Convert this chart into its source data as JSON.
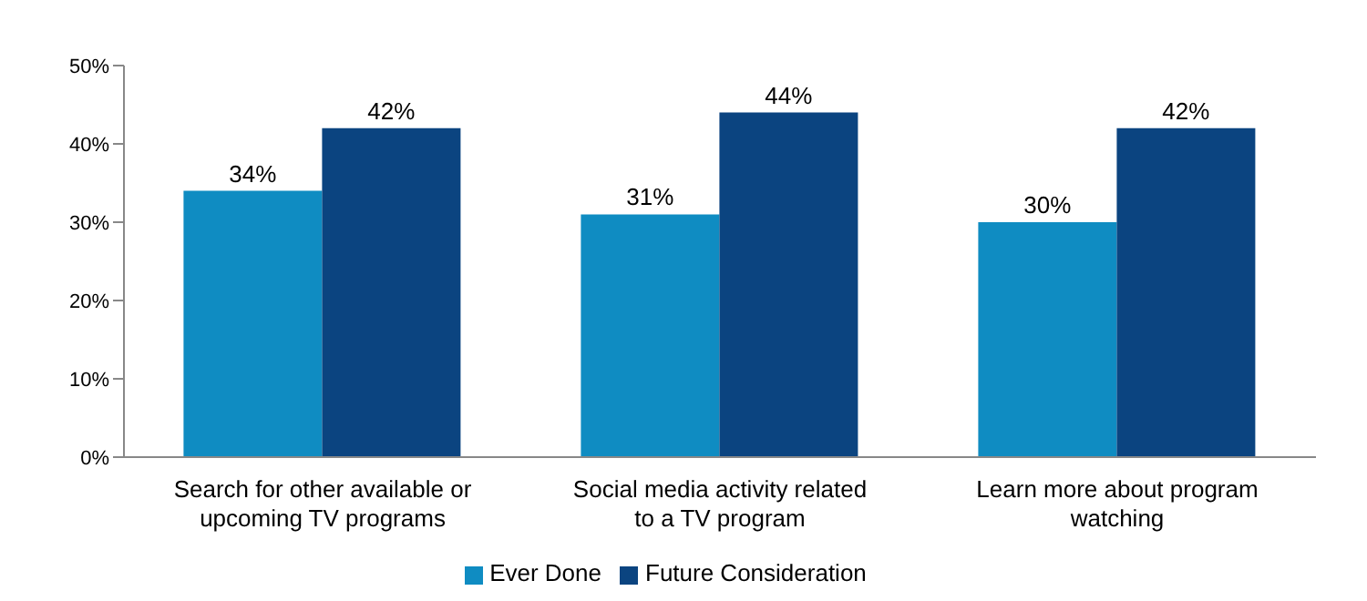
{
  "chart_data": {
    "type": "bar",
    "categories": [
      "Search for other available or upcoming TV programs",
      "Social media activity related to a TV program",
      "Learn more about program watching"
    ],
    "series": [
      {
        "name": "Ever Done",
        "color": "#0f8cc2",
        "values": [
          34,
          31,
          30
        ],
        "value_labels": [
          "34%",
          "31%",
          "30%"
        ]
      },
      {
        "name": "Future Consideration",
        "color": "#0b4480",
        "values": [
          42,
          44,
          42
        ],
        "value_labels": [
          "42%",
          "44%",
          "42%"
        ]
      }
    ],
    "ylim": [
      0,
      50
    ],
    "yticks": [
      {
        "value": 0,
        "label": "0%"
      },
      {
        "value": 10,
        "label": "10%"
      },
      {
        "value": 20,
        "label": "20%"
      },
      {
        "value": 30,
        "label": "30%"
      },
      {
        "value": 40,
        "label": "40%"
      },
      {
        "value": 50,
        "label": "50%"
      }
    ],
    "grid": false,
    "legend": "bottom"
  }
}
